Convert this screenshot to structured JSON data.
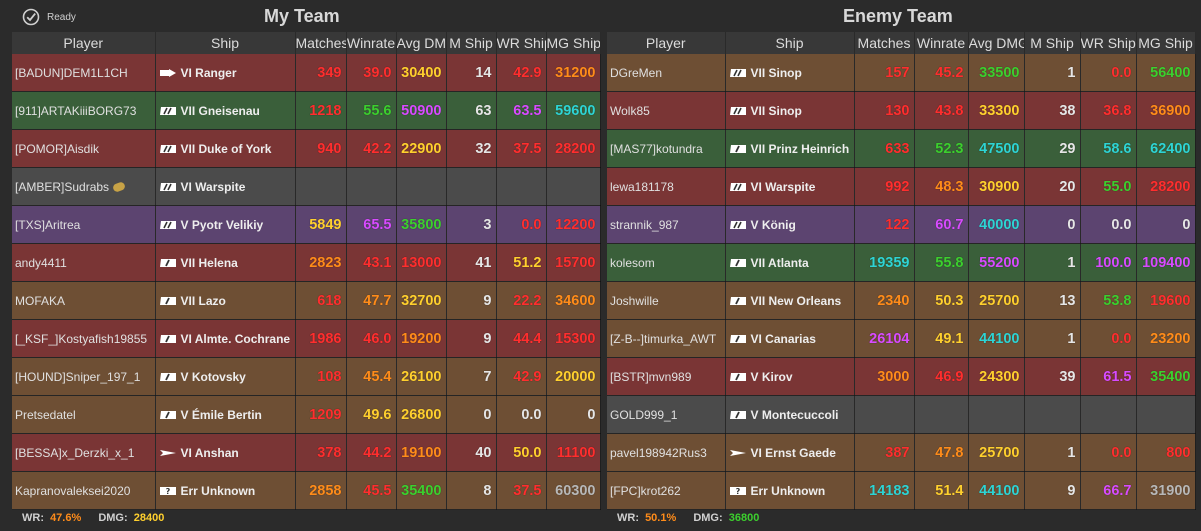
{
  "status": {
    "label": "Ready"
  },
  "colors": {
    "red": "#ff2e2e",
    "orange": "#ff8c1a",
    "yellow": "#ffd02e",
    "green": "#3ccf2e",
    "cyan": "#2ed4d4",
    "purple": "#d84bff",
    "white": "#e6e6e6",
    "grey": "#b8b8b8",
    "row_red": "#7a3535",
    "row_green": "#3a5f3a",
    "row_brown": "#6e4f34",
    "row_grey": "#4b4b4b",
    "row_purple": "#5c4470"
  },
  "columns": [
    "Player",
    "Ship",
    "Matches",
    "Winrate",
    "Avg DMG",
    "M Ship",
    "WR Ship",
    "MG Ship"
  ],
  "my_team": {
    "title": "My Team",
    "rows": [
      {
        "row": "red",
        "player": "[BADUN]DEM1L1CH",
        "ship": "VI Ranger",
        "icon": "cv",
        "badge": false,
        "cells": [
          {
            "v": "349",
            "c": "red"
          },
          {
            "v": "39.0",
            "c": "red"
          },
          {
            "v": "30400",
            "c": "yellow"
          },
          {
            "v": "14",
            "c": "white"
          },
          {
            "v": "42.9",
            "c": "red"
          },
          {
            "v": "31200",
            "c": "orange"
          }
        ]
      },
      {
        "row": "green",
        "player": "[911]ARTAKiiiBORG73",
        "ship": "VII Gneisenau",
        "icon": "bb",
        "badge": false,
        "cells": [
          {
            "v": "1218",
            "c": "red"
          },
          {
            "v": "55.6",
            "c": "green"
          },
          {
            "v": "50900",
            "c": "purple"
          },
          {
            "v": "63",
            "c": "white"
          },
          {
            "v": "63.5",
            "c": "purple"
          },
          {
            "v": "59600",
            "c": "cyan"
          }
        ]
      },
      {
        "row": "red",
        "player": "[POMOR]Aisdik",
        "ship": "VII Duke of York",
        "icon": "bb",
        "badge": false,
        "cells": [
          {
            "v": "940",
            "c": "red"
          },
          {
            "v": "42.2",
            "c": "red"
          },
          {
            "v": "22900",
            "c": "yellow"
          },
          {
            "v": "32",
            "c": "white"
          },
          {
            "v": "37.5",
            "c": "red"
          },
          {
            "v": "28200",
            "c": "red"
          }
        ]
      },
      {
        "row": "grey",
        "player": "[AMBER]Sudrabs",
        "ship": "VI Warspite",
        "icon": "bb",
        "badge": true,
        "cells": [
          {
            "v": "",
            "c": "white"
          },
          {
            "v": "",
            "c": "white"
          },
          {
            "v": "",
            "c": "white"
          },
          {
            "v": "",
            "c": "white"
          },
          {
            "v": "",
            "c": "white"
          },
          {
            "v": "",
            "c": "white"
          }
        ]
      },
      {
        "row": "purple",
        "player": "[TXS]Aritrea",
        "ship": "V Pyotr Velikiy",
        "icon": "bb",
        "badge": false,
        "cells": [
          {
            "v": "5849",
            "c": "yellow"
          },
          {
            "v": "65.5",
            "c": "purple"
          },
          {
            "v": "35800",
            "c": "green"
          },
          {
            "v": "3",
            "c": "white"
          },
          {
            "v": "0.0",
            "c": "red"
          },
          {
            "v": "12200",
            "c": "red"
          }
        ]
      },
      {
        "row": "red",
        "player": "andy4411",
        "ship": "VII Helena",
        "icon": "cl",
        "badge": false,
        "cells": [
          {
            "v": "2823",
            "c": "orange"
          },
          {
            "v": "43.1",
            "c": "red"
          },
          {
            "v": "13000",
            "c": "red"
          },
          {
            "v": "41",
            "c": "white"
          },
          {
            "v": "51.2",
            "c": "yellow"
          },
          {
            "v": "15700",
            "c": "red"
          }
        ]
      },
      {
        "row": "brown",
        "player": "MOFAKA",
        "ship": "VII Lazo",
        "icon": "cl",
        "badge": false,
        "cells": [
          {
            "v": "618",
            "c": "red"
          },
          {
            "v": "47.7",
            "c": "orange"
          },
          {
            "v": "32700",
            "c": "yellow"
          },
          {
            "v": "9",
            "c": "white"
          },
          {
            "v": "22.2",
            "c": "red"
          },
          {
            "v": "34600",
            "c": "orange"
          }
        ]
      },
      {
        "row": "red",
        "player": "[_KSF_]Kostyafish19855",
        "ship": "VI Almte. Cochrane",
        "icon": "cl",
        "badge": false,
        "cells": [
          {
            "v": "1986",
            "c": "red"
          },
          {
            "v": "46.0",
            "c": "red"
          },
          {
            "v": "19200",
            "c": "orange"
          },
          {
            "v": "9",
            "c": "white"
          },
          {
            "v": "44.4",
            "c": "red"
          },
          {
            "v": "15300",
            "c": "red"
          }
        ]
      },
      {
        "row": "brown",
        "player": "[HOUND]Sniper_197_1",
        "ship": "V Kotovsky",
        "icon": "cl",
        "badge": false,
        "cells": [
          {
            "v": "108",
            "c": "red"
          },
          {
            "v": "45.4",
            "c": "orange"
          },
          {
            "v": "26100",
            "c": "yellow"
          },
          {
            "v": "7",
            "c": "white"
          },
          {
            "v": "42.9",
            "c": "red"
          },
          {
            "v": "20000",
            "c": "yellow"
          }
        ]
      },
      {
        "row": "brown",
        "player": "Pretsedatel",
        "ship": "V Émile Bertin",
        "icon": "cl",
        "badge": false,
        "cells": [
          {
            "v": "1209",
            "c": "red"
          },
          {
            "v": "49.6",
            "c": "yellow"
          },
          {
            "v": "26800",
            "c": "yellow"
          },
          {
            "v": "0",
            "c": "white"
          },
          {
            "v": "0.0",
            "c": "white"
          },
          {
            "v": "0",
            "c": "white"
          }
        ]
      },
      {
        "row": "red",
        "player": "[BESSA]x_Derzki_x_1",
        "ship": "VI Anshan",
        "icon": "dd",
        "badge": false,
        "cells": [
          {
            "v": "378",
            "c": "red"
          },
          {
            "v": "44.2",
            "c": "red"
          },
          {
            "v": "19100",
            "c": "orange"
          },
          {
            "v": "40",
            "c": "white"
          },
          {
            "v": "50.0",
            "c": "yellow"
          },
          {
            "v": "11100",
            "c": "red"
          }
        ]
      },
      {
        "row": "brown",
        "player": "Kapranovaleksei2020",
        "ship": "Err Unknown",
        "icon": "unk",
        "badge": false,
        "cells": [
          {
            "v": "2858",
            "c": "orange"
          },
          {
            "v": "45.5",
            "c": "red"
          },
          {
            "v": "35400",
            "c": "green"
          },
          {
            "v": "8",
            "c": "white"
          },
          {
            "v": "37.5",
            "c": "red"
          },
          {
            "v": "60300",
            "c": "grey"
          }
        ]
      }
    ],
    "footer": {
      "wr_label": "WR:",
      "wr_value": "47.6%",
      "dmg_label": "DMG:",
      "dmg_value": "28400",
      "wr_color": "orange",
      "dmg_color": "yellow"
    }
  },
  "enemy_team": {
    "title": "Enemy Team",
    "rows": [
      {
        "row": "brown",
        "player": "DGreMen",
        "ship": "VII Sinop",
        "icon": "bb",
        "badge": false,
        "cells": [
          {
            "v": "157",
            "c": "red"
          },
          {
            "v": "45.2",
            "c": "red"
          },
          {
            "v": "33500",
            "c": "green"
          },
          {
            "v": "1",
            "c": "white"
          },
          {
            "v": "0.0",
            "c": "red"
          },
          {
            "v": "56400",
            "c": "green"
          }
        ]
      },
      {
        "row": "red",
        "player": "Wolk85",
        "ship": "VII Sinop",
        "icon": "bb",
        "badge": false,
        "cells": [
          {
            "v": "130",
            "c": "red"
          },
          {
            "v": "43.8",
            "c": "red"
          },
          {
            "v": "33300",
            "c": "yellow"
          },
          {
            "v": "38",
            "c": "white"
          },
          {
            "v": "36.8",
            "c": "red"
          },
          {
            "v": "36900",
            "c": "orange"
          }
        ]
      },
      {
        "row": "green",
        "player": "[MAS77]kotundra",
        "ship": "VII Prinz Heinrich",
        "icon": "cl",
        "badge": false,
        "cells": [
          {
            "v": "633",
            "c": "red"
          },
          {
            "v": "52.3",
            "c": "green"
          },
          {
            "v": "47500",
            "c": "cyan"
          },
          {
            "v": "29",
            "c": "white"
          },
          {
            "v": "58.6",
            "c": "cyan"
          },
          {
            "v": "62400",
            "c": "cyan"
          }
        ]
      },
      {
        "row": "red",
        "player": "lewa181178",
        "ship": "VI Warspite",
        "icon": "bb",
        "badge": false,
        "cells": [
          {
            "v": "992",
            "c": "red"
          },
          {
            "v": "48.3",
            "c": "orange"
          },
          {
            "v": "30900",
            "c": "yellow"
          },
          {
            "v": "20",
            "c": "white"
          },
          {
            "v": "55.0",
            "c": "green"
          },
          {
            "v": "28200",
            "c": "red"
          }
        ]
      },
      {
        "row": "purple",
        "player": "strannik_987",
        "ship": "V König",
        "icon": "bb",
        "badge": false,
        "cells": [
          {
            "v": "122",
            "c": "red"
          },
          {
            "v": "60.7",
            "c": "purple"
          },
          {
            "v": "40000",
            "c": "cyan"
          },
          {
            "v": "0",
            "c": "white"
          },
          {
            "v": "0.0",
            "c": "white"
          },
          {
            "v": "0",
            "c": "white"
          }
        ]
      },
      {
        "row": "green",
        "player": "kolesom",
        "ship": "VII Atlanta",
        "icon": "cl",
        "badge": false,
        "cells": [
          {
            "v": "19359",
            "c": "cyan"
          },
          {
            "v": "55.8",
            "c": "green"
          },
          {
            "v": "55200",
            "c": "purple"
          },
          {
            "v": "1",
            "c": "white"
          },
          {
            "v": "100.0",
            "c": "purple"
          },
          {
            "v": "109400",
            "c": "purple"
          }
        ]
      },
      {
        "row": "brown",
        "player": "Joshwille",
        "ship": "VII New Orleans",
        "icon": "cl",
        "badge": false,
        "cells": [
          {
            "v": "2340",
            "c": "orange"
          },
          {
            "v": "50.3",
            "c": "yellow"
          },
          {
            "v": "25700",
            "c": "yellow"
          },
          {
            "v": "13",
            "c": "white"
          },
          {
            "v": "53.8",
            "c": "green"
          },
          {
            "v": "19600",
            "c": "red"
          }
        ]
      },
      {
        "row": "brown",
        "player": "[Z-B--]timurka_AWT",
        "ship": "VI Canarias",
        "icon": "cl",
        "badge": false,
        "cells": [
          {
            "v": "26104",
            "c": "purple"
          },
          {
            "v": "49.1",
            "c": "yellow"
          },
          {
            "v": "44100",
            "c": "cyan"
          },
          {
            "v": "1",
            "c": "white"
          },
          {
            "v": "0.0",
            "c": "red"
          },
          {
            "v": "23200",
            "c": "orange"
          }
        ]
      },
      {
        "row": "red",
        "player": "[BSTR]mvn989",
        "ship": "V Kirov",
        "icon": "cl",
        "badge": false,
        "cells": [
          {
            "v": "3000",
            "c": "orange"
          },
          {
            "v": "46.9",
            "c": "red"
          },
          {
            "v": "24300",
            "c": "yellow"
          },
          {
            "v": "39",
            "c": "white"
          },
          {
            "v": "61.5",
            "c": "purple"
          },
          {
            "v": "35400",
            "c": "green"
          }
        ]
      },
      {
        "row": "grey",
        "player": "GOLD999_1",
        "ship": "V Montecuccoli",
        "icon": "cl",
        "badge": false,
        "cells": [
          {
            "v": "",
            "c": "white"
          },
          {
            "v": "",
            "c": "white"
          },
          {
            "v": "",
            "c": "white"
          },
          {
            "v": "",
            "c": "white"
          },
          {
            "v": "",
            "c": "white"
          },
          {
            "v": "",
            "c": "white"
          }
        ]
      },
      {
        "row": "brown",
        "player": "pavel198942Rus3",
        "ship": "VI Ernst Gaede",
        "icon": "dd",
        "badge": false,
        "cells": [
          {
            "v": "387",
            "c": "red"
          },
          {
            "v": "47.8",
            "c": "orange"
          },
          {
            "v": "25700",
            "c": "yellow"
          },
          {
            "v": "1",
            "c": "white"
          },
          {
            "v": "0.0",
            "c": "red"
          },
          {
            "v": "800",
            "c": "red"
          }
        ]
      },
      {
        "row": "brown",
        "player": "[FPC]krot262",
        "ship": "Err Unknown",
        "icon": "unk",
        "badge": false,
        "cells": [
          {
            "v": "14183",
            "c": "cyan"
          },
          {
            "v": "51.4",
            "c": "yellow"
          },
          {
            "v": "44100",
            "c": "cyan"
          },
          {
            "v": "9",
            "c": "white"
          },
          {
            "v": "66.7",
            "c": "purple"
          },
          {
            "v": "31900",
            "c": "grey"
          }
        ]
      }
    ],
    "footer": {
      "wr_label": "WR:",
      "wr_value": "50.1%",
      "dmg_label": "DMG:",
      "dmg_value": "36800",
      "wr_color": "orange",
      "dmg_color": "green"
    }
  }
}
